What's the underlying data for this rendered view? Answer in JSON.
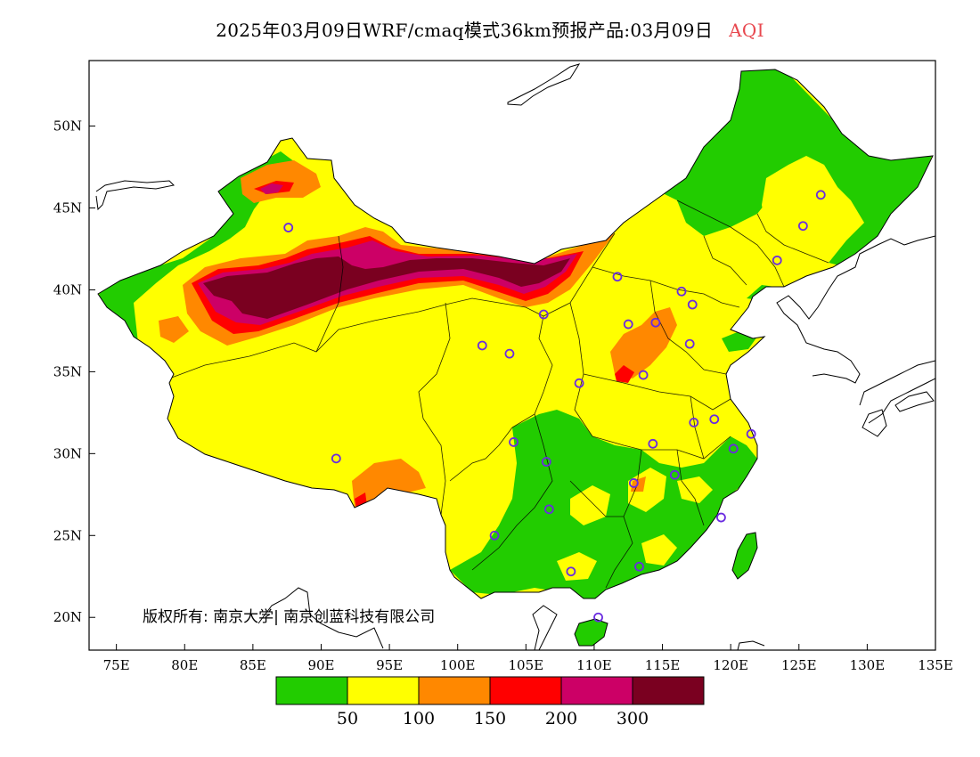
{
  "title": {
    "main": "2025年03月09日WRF/cmaq模式36km预报产品:03月09日",
    "product": "AQI",
    "product_color": "#e8484f"
  },
  "copyright": "版权所有: 南京大学| 南京创蓝科技有限公司",
  "axes": {
    "lon_ticks": [
      "75E",
      "80E",
      "85E",
      "90E",
      "95E",
      "100E",
      "105E",
      "110E",
      "115E",
      "120E",
      "125E",
      "130E",
      "135E"
    ],
    "lon_values": [
      75,
      80,
      85,
      90,
      95,
      100,
      105,
      110,
      115,
      120,
      125,
      130,
      135
    ],
    "lat_ticks": [
      "50N",
      "45N",
      "40N",
      "35N",
      "30N",
      "25N",
      "20N"
    ],
    "lat_values": [
      50,
      45,
      40,
      35,
      30,
      25,
      20
    ],
    "lon_range": [
      73,
      135
    ],
    "lat_range": [
      18,
      54
    ]
  },
  "legend": {
    "colors": [
      "#22cc00",
      "#ffff00",
      "#ff8800",
      "#ff0000",
      "#cc0066",
      "#7a0020"
    ],
    "labels": [
      "50",
      "100",
      "150",
      "200",
      "300"
    ]
  },
  "stations": [
    {
      "lon": 87.6,
      "lat": 43.8
    },
    {
      "lon": 91.1,
      "lat": 29.7
    },
    {
      "lon": 101.8,
      "lat": 36.6
    },
    {
      "lon": 103.8,
      "lat": 36.1
    },
    {
      "lon": 106.3,
      "lat": 38.5
    },
    {
      "lon": 111.7,
      "lat": 40.8
    },
    {
      "lon": 104.1,
      "lat": 30.7
    },
    {
      "lon": 106.5,
      "lat": 29.5
    },
    {
      "lon": 106.7,
      "lat": 26.6
    },
    {
      "lon": 102.7,
      "lat": 25.0
    },
    {
      "lon": 108.9,
      "lat": 34.3
    },
    {
      "lon": 112.5,
      "lat": 37.9
    },
    {
      "lon": 114.5,
      "lat": 38.0
    },
    {
      "lon": 116.4,
      "lat": 39.9
    },
    {
      "lon": 117.2,
      "lat": 39.1
    },
    {
      "lon": 117.0,
      "lat": 36.7
    },
    {
      "lon": 113.6,
      "lat": 34.8
    },
    {
      "lon": 114.3,
      "lat": 30.6
    },
    {
      "lon": 112.9,
      "lat": 28.2
    },
    {
      "lon": 115.9,
      "lat": 28.7
    },
    {
      "lon": 117.3,
      "lat": 31.9
    },
    {
      "lon": 118.8,
      "lat": 32.1
    },
    {
      "lon": 120.2,
      "lat": 30.3
    },
    {
      "lon": 121.5,
      "lat": 31.2
    },
    {
      "lon": 119.3,
      "lat": 26.1
    },
    {
      "lon": 113.3,
      "lat": 23.1
    },
    {
      "lon": 108.3,
      "lat": 22.8
    },
    {
      "lon": 110.3,
      "lat": 20.0
    },
    {
      "lon": 123.4,
      "lat": 41.8
    },
    {
      "lon": 125.3,
      "lat": 43.9
    },
    {
      "lon": 126.6,
      "lat": 45.8
    }
  ]
}
